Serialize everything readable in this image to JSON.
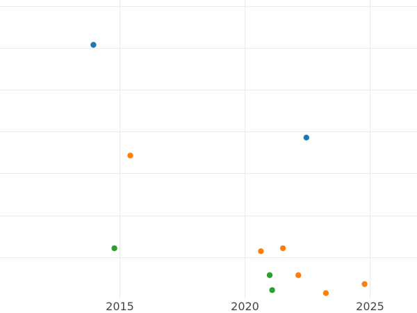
{
  "chart_data": {
    "type": "scatter",
    "title": "",
    "xlabel": "",
    "ylabel": "",
    "xlim": [
      2010.2,
      2026.9
    ],
    "ylim": [
      0,
      1.0
    ],
    "xticks": [
      2015,
      2020,
      2025
    ],
    "xtick_labels": [
      "2015",
      "2020",
      "2025"
    ],
    "y_gridlines": [
      0.14,
      0.28,
      0.42,
      0.56,
      0.7,
      0.84,
      0.98
    ],
    "grid": true,
    "legend": "none",
    "series": [
      {
        "color": "#1f77b4",
        "points": [
          {
            "x": 2013.94,
            "y": 0.85
          },
          {
            "x": 2022.47,
            "y": 0.54
          }
        ]
      },
      {
        "color": "#ff7f0e",
        "points": [
          {
            "x": 2015.42,
            "y": 0.48
          },
          {
            "x": 2020.65,
            "y": 0.16
          },
          {
            "x": 2021.53,
            "y": 0.17
          },
          {
            "x": 2022.15,
            "y": 0.08
          },
          {
            "x": 2023.25,
            "y": 0.02
          },
          {
            "x": 2024.8,
            "y": 0.05
          }
        ]
      },
      {
        "color": "#2ca02c",
        "points": [
          {
            "x": 2014.78,
            "y": 0.17
          },
          {
            "x": 2021.0,
            "y": 0.08
          },
          {
            "x": 2021.1,
            "y": 0.03
          }
        ]
      }
    ]
  }
}
